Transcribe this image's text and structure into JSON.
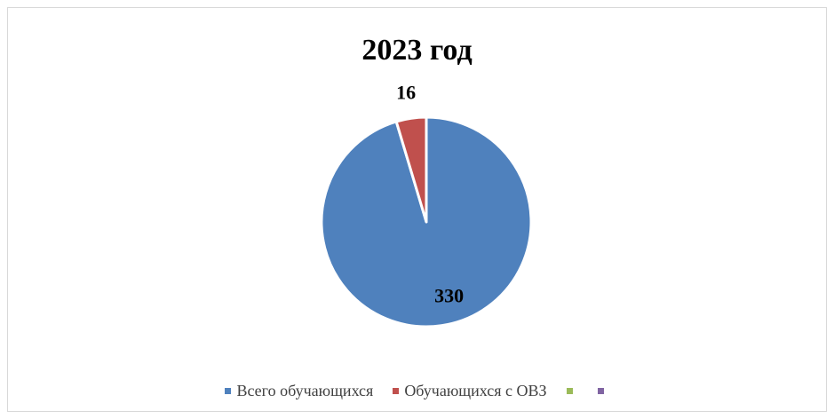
{
  "chart_data": {
    "type": "pie",
    "title": "2023 год",
    "slices": [
      {
        "label": "Всего обучающихся",
        "value": 330,
        "color": "#4f81bd",
        "data_label": "330"
      },
      {
        "label": "Обучающихся с ОВЗ",
        "value": 16,
        "color": "#c0504d",
        "data_label": "16"
      }
    ],
    "legend": {
      "position": "bottom",
      "entries": [
        {
          "label": "Всего обучающихся",
          "color": "#4f81bd"
        },
        {
          "label": "Обучающихся с ОВЗ",
          "color": "#c0504d"
        },
        {
          "label": "",
          "color": "#9bbb59"
        },
        {
          "label": "",
          "color": "#8064a2"
        }
      ]
    }
  }
}
